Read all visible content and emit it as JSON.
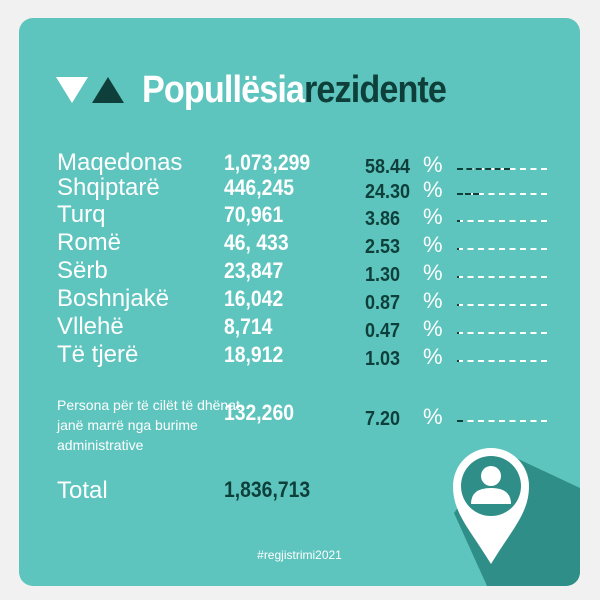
{
  "title": {
    "part1": "Popullësia",
    "part2": "rezidente"
  },
  "rows": [
    {
      "name": "Maqedonas",
      "value": "1,073,299",
      "percent": "58.44",
      "pct_sign": "%",
      "share": 0.5844
    },
    {
      "name": "Shqiptarë",
      "value": "446,245",
      "percent": "24.30",
      "pct_sign": "%",
      "share": 0.243
    },
    {
      "name": "Turq",
      "value": "70,961",
      "percent": "3.86",
      "pct_sign": "%",
      "share": 0.0386
    },
    {
      "name": "Romë",
      "value": "46, 433",
      "percent": "2.53",
      "pct_sign": "%",
      "share": 0.0253
    },
    {
      "name": "Sërb",
      "value": "23,847",
      "percent": "1.30",
      "pct_sign": "%",
      "share": 0.013
    },
    {
      "name": "Boshnjakë",
      "value": "16,042",
      "percent": "0.87",
      "pct_sign": "%",
      "share": 0.0087
    },
    {
      "name": "Vllehë",
      "value": "8,714",
      "percent": "0.47",
      "pct_sign": "%",
      "share": 0.0047
    },
    {
      "name": "Të tjerë",
      "value": "18,912",
      "percent": "1.03",
      "pct_sign": "%",
      "share": 0.0103
    }
  ],
  "admin_row": {
    "name": "Persona për të cilët të dhënat janë marrë nga burime administrative",
    "value": "132,260",
    "percent": "7.20",
    "pct_sign": "%",
    "share": 0.072
  },
  "total": {
    "label": "Total",
    "value": "1,836,713"
  },
  "hashtag": "#regjistrimi2021",
  "colors": {
    "card": "#5ec4be",
    "dark": "#0e3f3a",
    "text": "#ffffff",
    "shadow": "#2f8f88"
  },
  "icons": [
    "triangle-down-icon",
    "triangle-up-icon",
    "location-pin-person-icon"
  ]
}
